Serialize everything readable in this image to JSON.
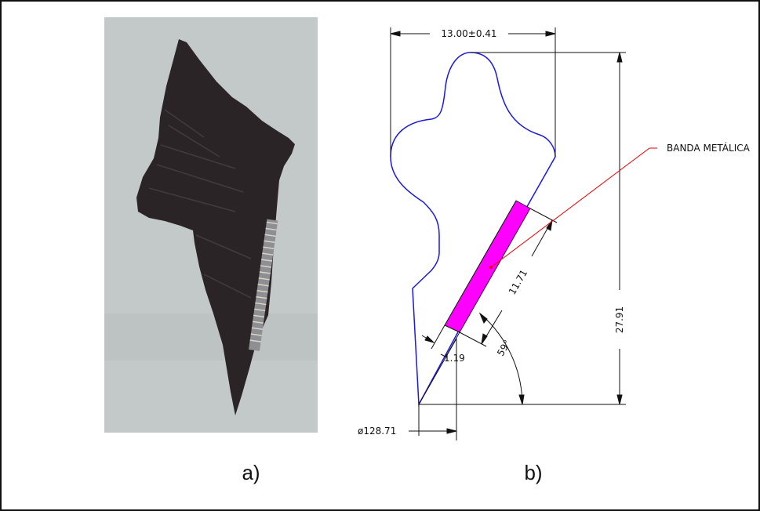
{
  "panel_a": {
    "caption": "a)"
  },
  "panel_b": {
    "caption": "b)",
    "dimensions": {
      "width_top": "13.00±0.41",
      "height_total": "27.91",
      "band_length": "11.71",
      "band_thickness": "1.19",
      "angle": "59°",
      "diameter": "ø128.71"
    },
    "callout": "BANDA METÁLICA"
  },
  "colors": {
    "outline": "#1a1ad9",
    "band": "#ff00ff",
    "leader": "#e60000",
    "dimension": "#111111",
    "photo_background": "#c3c8c9",
    "specimen": "#2b2426"
  }
}
